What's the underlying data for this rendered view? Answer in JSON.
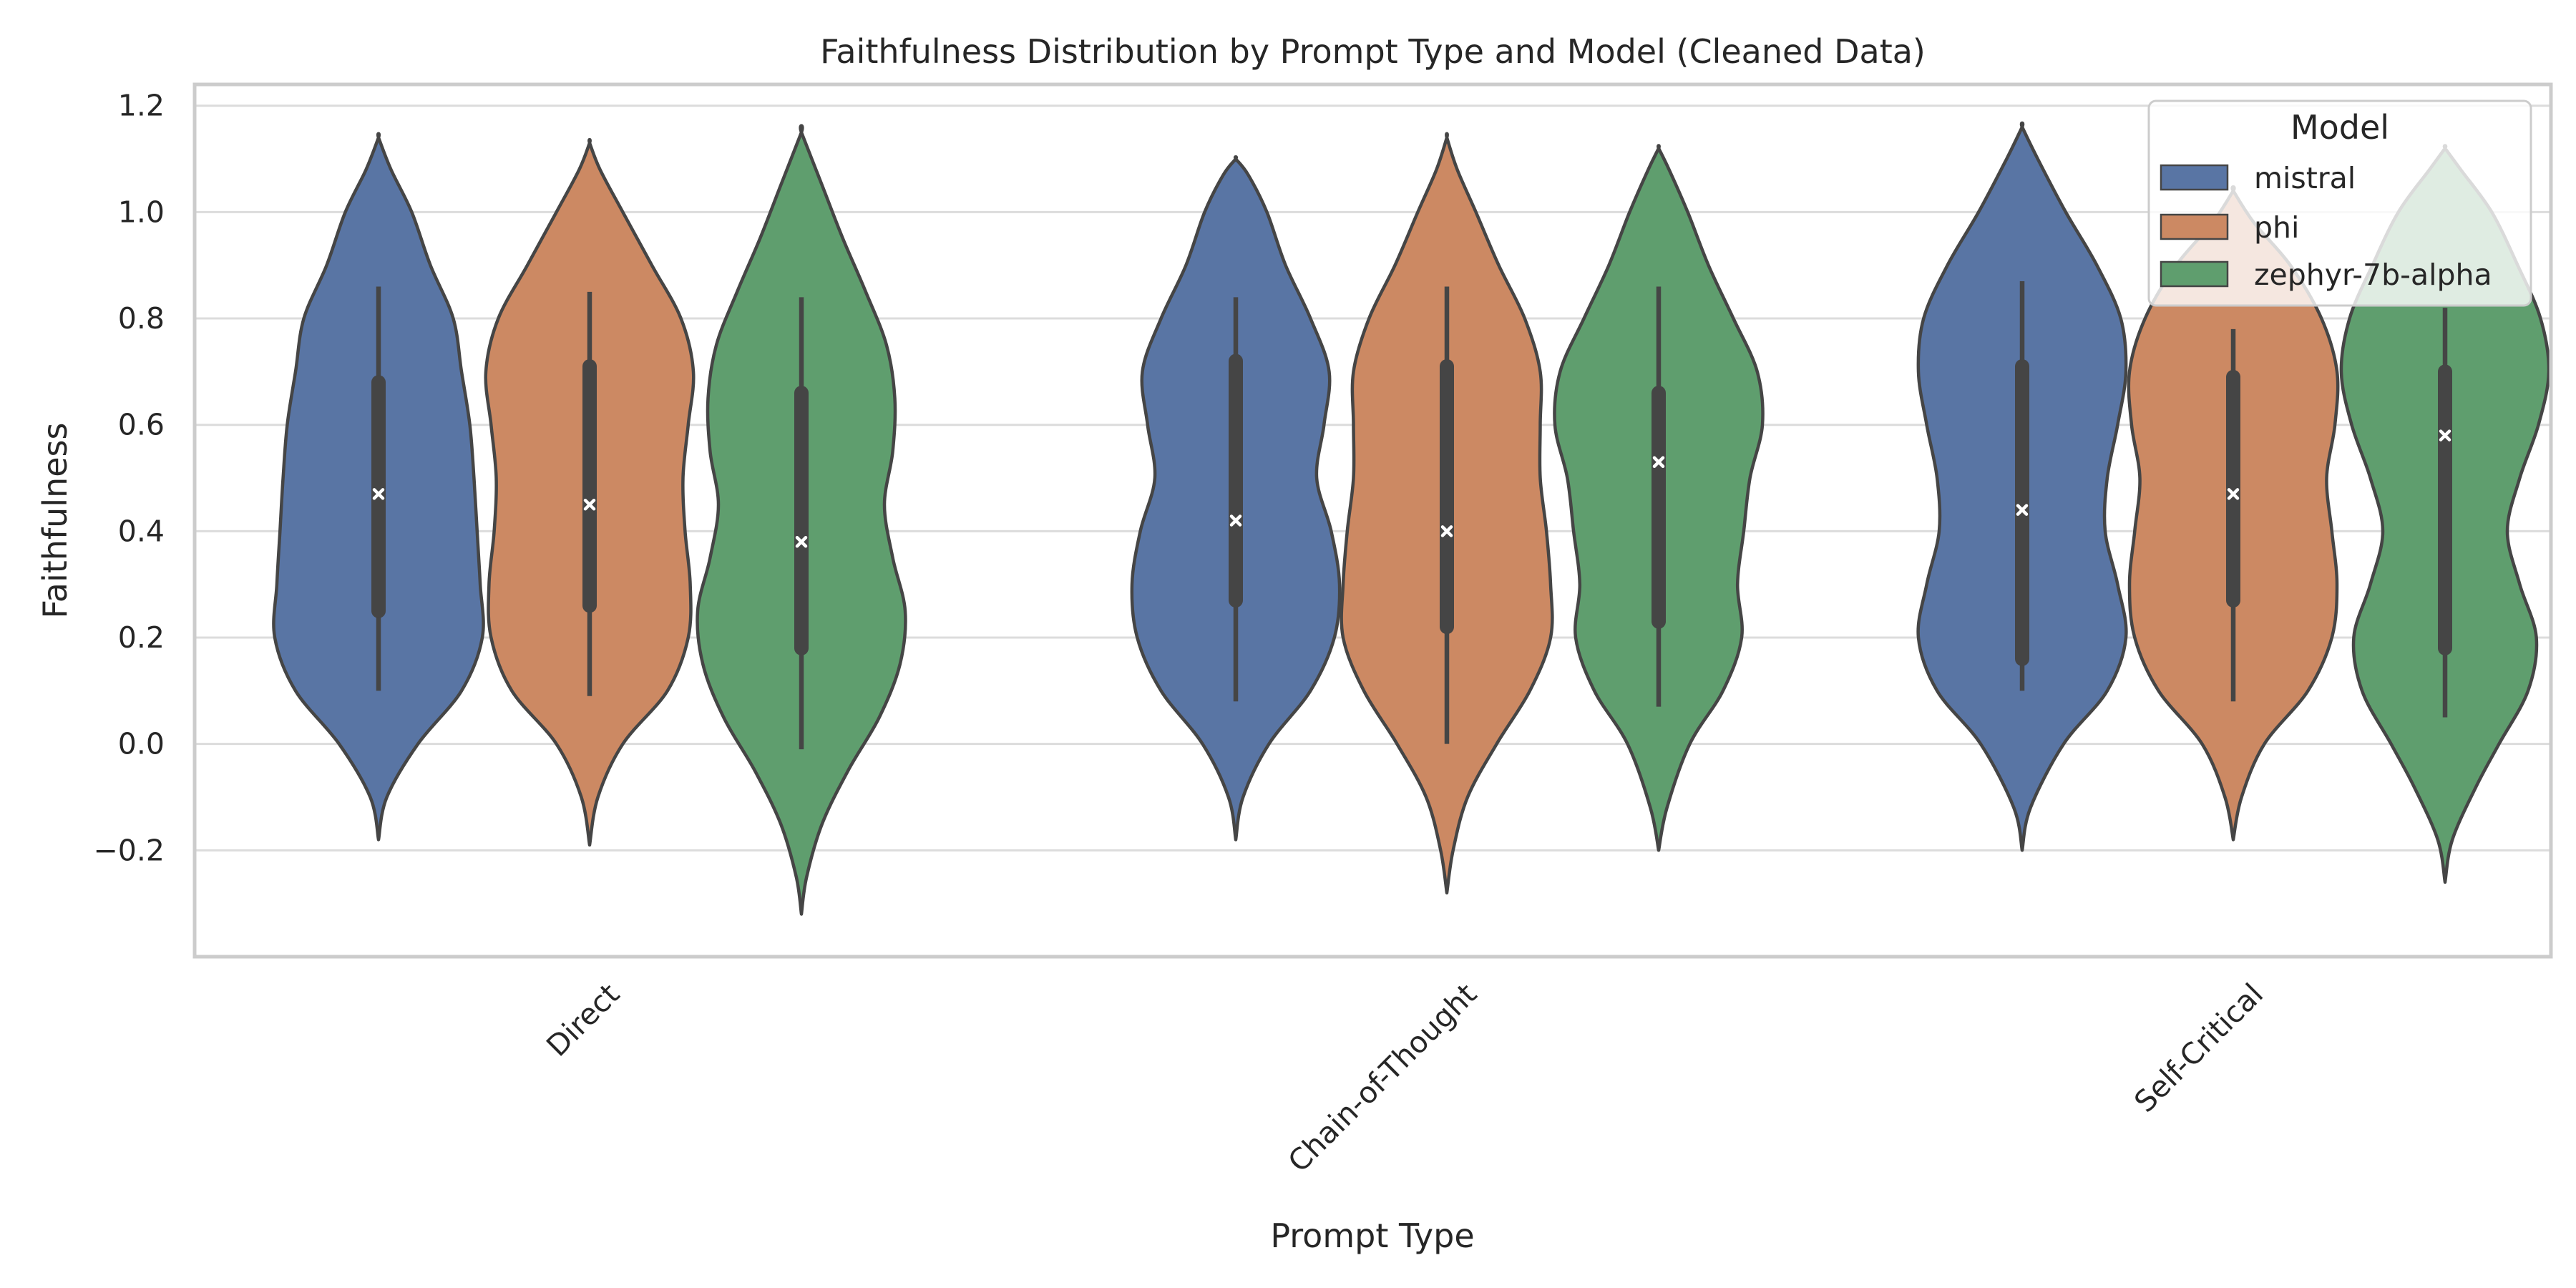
{
  "chart_data": {
    "type": "violin",
    "title": "Faithfulness Distribution by Prompt Type and Model (Cleaned Data)",
    "xlabel": "Prompt Type",
    "ylabel": "Faithfulness",
    "ylim": [
      -0.4,
      1.24
    ],
    "yticks": [
      -0.2,
      0.0,
      0.2,
      0.4,
      0.6,
      0.8,
      1.0,
      1.2
    ],
    "ytick_labels": [
      "−0.2",
      "0.0",
      "0.2",
      "0.4",
      "0.6",
      "0.8",
      "1.0",
      "1.2"
    ],
    "categories": [
      "Direct",
      "Chain-of-Thought",
      "Self-Critical"
    ],
    "grid": true,
    "legend": {
      "title": "Model",
      "placement": "top-right"
    },
    "series": [
      {
        "name": "mistral",
        "color": "#5975a4",
        "violins": [
          {
            "range": [
              -0.18,
              1.14
            ],
            "whisker": [
              0.1,
              0.86
            ],
            "box": [
              0.25,
              0.68
            ],
            "mean": 0.47,
            "profile": [
              [
                -0.18,
                0.0
              ],
              [
                -0.1,
                0.08
              ],
              [
                0.0,
                0.38
              ],
              [
                0.1,
                0.8
              ],
              [
                0.2,
                1.0
              ],
              [
                0.3,
                0.98
              ],
              [
                0.4,
                0.95
              ],
              [
                0.5,
                0.92
              ],
              [
                0.6,
                0.88
              ],
              [
                0.7,
                0.8
              ],
              [
                0.8,
                0.72
              ],
              [
                0.9,
                0.5
              ],
              [
                1.0,
                0.32
              ],
              [
                1.08,
                0.12
              ],
              [
                1.14,
                0.0
              ]
            ]
          },
          {
            "range": [
              -0.18,
              1.1
            ],
            "whisker": [
              0.08,
              0.84
            ],
            "box": [
              0.27,
              0.72
            ],
            "mean": 0.42,
            "profile": [
              [
                -0.18,
                0.0
              ],
              [
                -0.1,
                0.07
              ],
              [
                0.0,
                0.32
              ],
              [
                0.1,
                0.72
              ],
              [
                0.2,
                0.95
              ],
              [
                0.3,
                1.0
              ],
              [
                0.4,
                0.92
              ],
              [
                0.5,
                0.78
              ],
              [
                0.6,
                0.85
              ],
              [
                0.7,
                0.9
              ],
              [
                0.8,
                0.72
              ],
              [
                0.9,
                0.48
              ],
              [
                1.0,
                0.3
              ],
              [
                1.07,
                0.12
              ],
              [
                1.1,
                0.0
              ]
            ]
          },
          {
            "range": [
              -0.2,
              1.16
            ],
            "whisker": [
              0.1,
              0.87
            ],
            "box": [
              0.16,
              0.71
            ],
            "mean": 0.44,
            "profile": [
              [
                -0.2,
                0.0
              ],
              [
                -0.12,
                0.08
              ],
              [
                0.0,
                0.4
              ],
              [
                0.1,
                0.82
              ],
              [
                0.2,
                1.0
              ],
              [
                0.3,
                0.92
              ],
              [
                0.4,
                0.8
              ],
              [
                0.5,
                0.82
              ],
              [
                0.6,
                0.92
              ],
              [
                0.7,
                1.0
              ],
              [
                0.8,
                0.95
              ],
              [
                0.9,
                0.72
              ],
              [
                1.0,
                0.42
              ],
              [
                1.1,
                0.15
              ],
              [
                1.16,
                0.0
              ]
            ]
          }
        ]
      },
      {
        "name": "phi",
        "color": "#cc8963",
        "violins": [
          {
            "range": [
              -0.19,
              1.13
            ],
            "whisker": [
              0.09,
              0.85
            ],
            "box": [
              0.26,
              0.71
            ],
            "mean": 0.45,
            "profile": [
              [
                -0.19,
                0.0
              ],
              [
                -0.1,
                0.08
              ],
              [
                0.0,
                0.32
              ],
              [
                0.1,
                0.75
              ],
              [
                0.2,
                0.95
              ],
              [
                0.3,
                0.97
              ],
              [
                0.4,
                0.92
              ],
              [
                0.5,
                0.9
              ],
              [
                0.6,
                0.95
              ],
              [
                0.7,
                1.0
              ],
              [
                0.8,
                0.88
              ],
              [
                0.9,
                0.6
              ],
              [
                1.0,
                0.32
              ],
              [
                1.08,
                0.1
              ],
              [
                1.13,
                0.0
              ]
            ]
          },
          {
            "range": [
              -0.28,
              1.14
            ],
            "whisker": [
              0.0,
              0.86
            ],
            "box": [
              0.22,
              0.71
            ],
            "mean": 0.4,
            "profile": [
              [
                -0.28,
                0.0
              ],
              [
                -0.2,
                0.06
              ],
              [
                -0.1,
                0.2
              ],
              [
                0.0,
                0.48
              ],
              [
                0.1,
                0.8
              ],
              [
                0.2,
                1.0
              ],
              [
                0.3,
                1.0
              ],
              [
                0.4,
                0.96
              ],
              [
                0.5,
                0.9
              ],
              [
                0.6,
                0.9
              ],
              [
                0.7,
                0.9
              ],
              [
                0.8,
                0.75
              ],
              [
                0.9,
                0.5
              ],
              [
                1.0,
                0.28
              ],
              [
                1.08,
                0.1
              ],
              [
                1.14,
                0.0
              ]
            ]
          },
          {
            "range": [
              -0.18,
              1.04
            ],
            "whisker": [
              0.08,
              0.78
            ],
            "box": [
              0.27,
              0.69
            ],
            "mean": 0.47,
            "profile": [
              [
                -0.18,
                0.0
              ],
              [
                -0.1,
                0.08
              ],
              [
                0.0,
                0.3
              ],
              [
                0.1,
                0.72
              ],
              [
                0.2,
                0.95
              ],
              [
                0.3,
                1.0
              ],
              [
                0.4,
                0.95
              ],
              [
                0.5,
                0.9
              ],
              [
                0.6,
                0.98
              ],
              [
                0.7,
                1.0
              ],
              [
                0.8,
                0.85
              ],
              [
                0.9,
                0.55
              ],
              [
                0.98,
                0.2
              ],
              [
                1.04,
                0.0
              ]
            ]
          }
        ]
      },
      {
        "name": "zephyr-7b-alpha",
        "color": "#5f9e6e",
        "violins": [
          {
            "range": [
              -0.32,
              1.15
            ],
            "whisker": [
              -0.01,
              0.84
            ],
            "box": [
              0.18,
              0.66
            ],
            "mean": 0.38,
            "profile": [
              [
                -0.32,
                0.0
              ],
              [
                -0.25,
                0.05
              ],
              [
                -0.15,
                0.2
              ],
              [
                -0.05,
                0.45
              ],
              [
                0.05,
                0.75
              ],
              [
                0.15,
                0.95
              ],
              [
                0.25,
                1.0
              ],
              [
                0.35,
                0.88
              ],
              [
                0.45,
                0.8
              ],
              [
                0.55,
                0.88
              ],
              [
                0.65,
                0.9
              ],
              [
                0.75,
                0.82
              ],
              [
                0.85,
                0.62
              ],
              [
                0.95,
                0.4
              ],
              [
                1.05,
                0.2
              ],
              [
                1.15,
                0.0
              ]
            ]
          },
          {
            "range": [
              -0.2,
              1.12
            ],
            "whisker": [
              0.07,
              0.86
            ],
            "box": [
              0.23,
              0.66
            ],
            "mean": 0.53,
            "profile": [
              [
                -0.2,
                0.0
              ],
              [
                -0.12,
                0.08
              ],
              [
                0.0,
                0.3
              ],
              [
                0.1,
                0.62
              ],
              [
                0.2,
                0.8
              ],
              [
                0.3,
                0.76
              ],
              [
                0.4,
                0.82
              ],
              [
                0.5,
                0.88
              ],
              [
                0.6,
                1.0
              ],
              [
                0.7,
                0.95
              ],
              [
                0.8,
                0.72
              ],
              [
                0.9,
                0.48
              ],
              [
                1.0,
                0.28
              ],
              [
                1.08,
                0.1
              ],
              [
                1.12,
                0.0
              ]
            ]
          },
          {
            "range": [
              -0.26,
              1.12
            ],
            "whisker": [
              0.05,
              0.82
            ],
            "box": [
              0.18,
              0.7
            ],
            "mean": 0.58,
            "profile": [
              [
                -0.26,
                0.0
              ],
              [
                -0.18,
                0.07
              ],
              [
                -0.08,
                0.3
              ],
              [
                0.0,
                0.52
              ],
              [
                0.1,
                0.8
              ],
              [
                0.2,
                0.88
              ],
              [
                0.3,
                0.72
              ],
              [
                0.4,
                0.6
              ],
              [
                0.5,
                0.72
              ],
              [
                0.6,
                0.9
              ],
              [
                0.7,
                1.0
              ],
              [
                0.8,
                0.92
              ],
              [
                0.9,
                0.7
              ],
              [
                1.0,
                0.45
              ],
              [
                1.08,
                0.15
              ],
              [
                1.12,
                0.0
              ]
            ]
          }
        ]
      }
    ]
  }
}
